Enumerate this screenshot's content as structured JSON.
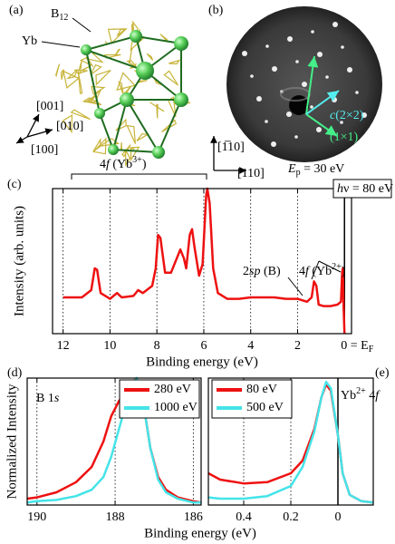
{
  "figure": {
    "panel_labels": [
      "(a)",
      "(b)",
      "(c)",
      "(d)",
      "(e)"
    ],
    "a": {
      "b12": [
        "B",
        "12"
      ],
      "yb": "Yb",
      "dirs": [
        "[001]",
        "[010]",
        "[100]"
      ]
    },
    "b": {
      "c2x2": [
        "c",
        "(2×2)"
      ],
      "p1x1": "(1×1)",
      "dirs": [
        "[1̅10]",
        "[110]"
      ],
      "energy": [
        "E",
        "p",
        " = 30 eV"
      ]
    }
  },
  "chart_data": [
    {
      "type": "line",
      "y_label": "Intensity (arb. units)",
      "x_label": "Binding energy (eV)",
      "xlim": [
        12.45,
        -0.3
      ],
      "ylim": [
        0,
        1
      ],
      "xticks": [
        12,
        10,
        8,
        6,
        4,
        2,
        {
          "value": 0,
          "label": "0 = E",
          "sub": "F"
        }
      ],
      "grid": true,
      "zero_line": true,
      "x": [
        12,
        11.2,
        10.8,
        10.65,
        10.55,
        10.4,
        10,
        9.7,
        9.5,
        9,
        8.8,
        8.6,
        8.2,
        8.05,
        7.95,
        7.85,
        7.65,
        7.4,
        7.15,
        7.0,
        6.85,
        6.75,
        6.6,
        6.5,
        6.4,
        6.2,
        6.05,
        5.9,
        5.85,
        5.75,
        5.6,
        5.4,
        5,
        4.5,
        4,
        3.5,
        3,
        2.5,
        2,
        1.6,
        1.4,
        1.3,
        1.2,
        1.1,
        0.9,
        0.6,
        0.3,
        0.15,
        0.1,
        0.07,
        0.04,
        0.0
      ],
      "series": [
        {
          "color": "#ee1111",
          "values": [
            0.25,
            0.25,
            0.3,
            0.45,
            0.44,
            0.28,
            0.24,
            0.28,
            0.25,
            0.26,
            0.3,
            0.28,
            0.33,
            0.45,
            0.68,
            0.66,
            0.42,
            0.42,
            0.52,
            0.58,
            0.52,
            0.45,
            0.68,
            0.72,
            0.6,
            0.4,
            0.48,
            0.95,
            1.0,
            0.9,
            0.45,
            0.28,
            0.24,
            0.24,
            0.25,
            0.25,
            0.25,
            0.24,
            0.24,
            0.22,
            0.25,
            0.36,
            0.33,
            0.2,
            0.19,
            0.19,
            0.2,
            0.22,
            0.42,
            0.45,
            0.2,
            0.0
          ]
        }
      ],
      "annotations": {
        "yb3": [
          "4",
          "f",
          " (Yb",
          "3+",
          ")"
        ],
        "hv": [
          "h",
          "ν",
          " = 80 eV"
        ],
        "sp": [
          "2",
          "sp",
          " (B)"
        ],
        "yb2": [
          "4",
          "f",
          " (Yb",
          "2+",
          ")"
        ]
      }
    },
    {
      "type": "line",
      "y_label": "Normalized Intensity",
      "x_label": "Binding energy (eV)",
      "xlim": [
        190.25,
        185.8
      ],
      "ylim": [
        0,
        1
      ],
      "xticks": [
        190,
        188,
        186
      ],
      "grid": true,
      "legend": "top-right",
      "x": [
        190.25,
        190,
        189.5,
        189,
        188.6,
        188.3,
        188.1,
        187.9,
        187.7,
        187.55,
        187.45,
        187.3,
        187.1,
        186.9,
        186.7,
        186.4,
        186,
        185.8
      ],
      "series": [
        {
          "name": "280 eV",
          "color": "#ee1111",
          "values": [
            0.05,
            0.06,
            0.1,
            0.18,
            0.3,
            0.5,
            0.7,
            0.82,
            0.9,
            0.97,
            1.0,
            0.85,
            0.45,
            0.22,
            0.12,
            0.06,
            0.03,
            0.02
          ]
        },
        {
          "name": "1000 eV",
          "color": "#44e4e8",
          "values": [
            0.02,
            0.03,
            0.04,
            0.07,
            0.12,
            0.22,
            0.38,
            0.6,
            0.82,
            0.96,
            1.0,
            0.85,
            0.45,
            0.2,
            0.1,
            0.05,
            0.02,
            0.02
          ]
        }
      ],
      "annotations": {
        "b1s": [
          "B 1",
          "s"
        ]
      }
    },
    {
      "type": "line",
      "xlim": [
        0.55,
        -0.15
      ],
      "ylim": [
        0,
        1
      ],
      "xticks": [
        0.4,
        0.2,
        0.0
      ],
      "grid": true,
      "zero_line": true,
      "legend": "top-left",
      "x": [
        0.55,
        0.5,
        0.4,
        0.3,
        0.2,
        0.15,
        0.1,
        0.07,
        0.05,
        0.03,
        0.0,
        -0.02,
        -0.05,
        -0.1,
        -0.15
      ],
      "series": [
        {
          "name": "80 eV",
          "color": "#ee1111",
          "values": [
            0.25,
            0.2,
            0.17,
            0.18,
            0.25,
            0.35,
            0.6,
            0.85,
            0.95,
            0.9,
            0.55,
            0.25,
            0.08,
            0.03,
            0.02
          ]
        },
        {
          "name": "500 eV",
          "color": "#44e4e8",
          "values": [
            0.06,
            0.05,
            0.05,
            0.07,
            0.15,
            0.3,
            0.58,
            0.85,
            0.97,
            0.92,
            0.55,
            0.25,
            0.08,
            0.03,
            0.02
          ]
        }
      ],
      "annotations": {
        "yb2": [
          "Yb",
          "2+",
          " 4",
          "f"
        ]
      }
    }
  ]
}
